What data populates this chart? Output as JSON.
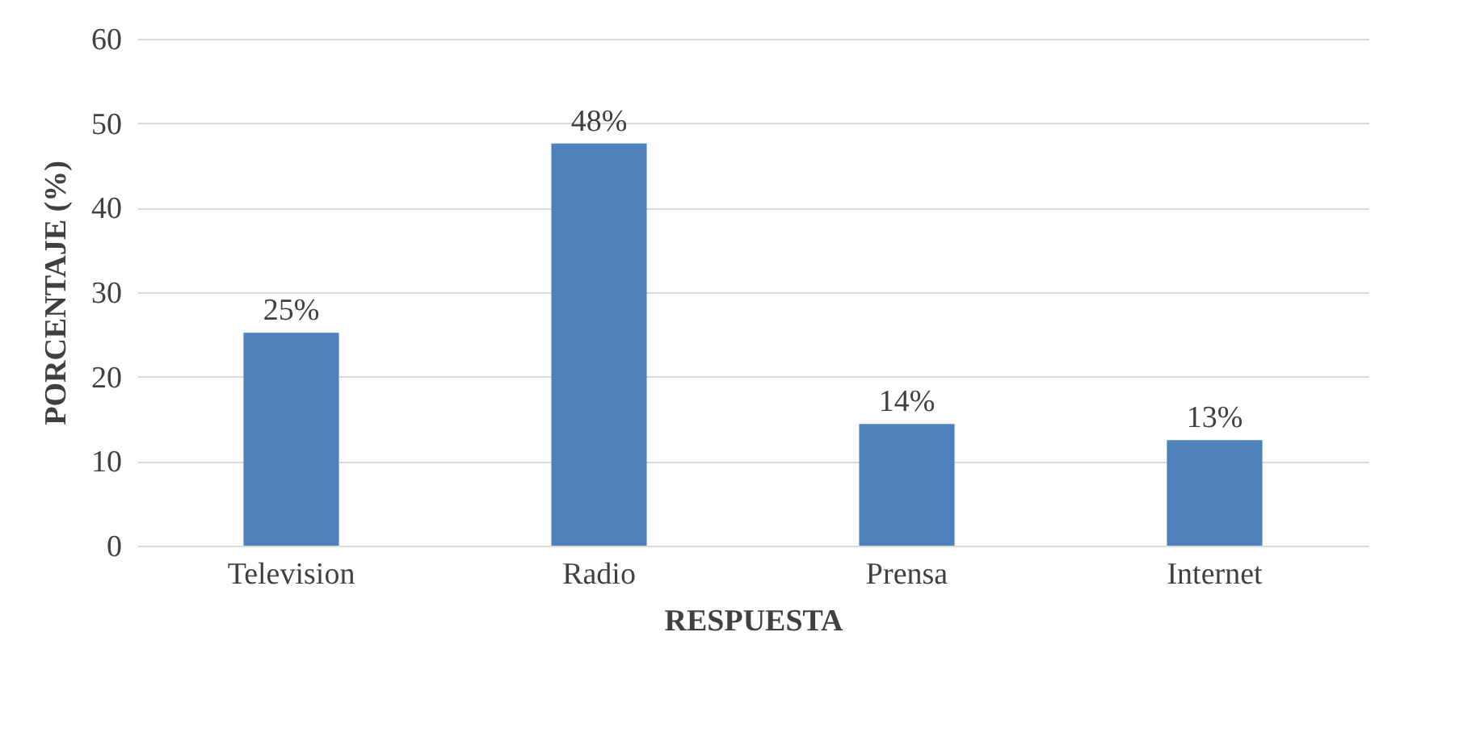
{
  "chart_data": {
    "type": "bar",
    "xlabel": "RESPUESTA",
    "ylabel": "PORCENTAJE (%)",
    "categories": [
      "Television",
      "Radio",
      "Prensa",
      "Internet"
    ],
    "values": [
      25.2,
      47.6,
      14.4,
      12.5
    ],
    "value_labels": [
      "25%",
      "48%",
      "14%",
      "13%"
    ],
    "color": "#4f81bd",
    "ylim": [
      0,
      60
    ],
    "yticks": [
      0,
      10,
      20,
      30,
      40,
      50,
      60
    ],
    "grid": "y"
  }
}
